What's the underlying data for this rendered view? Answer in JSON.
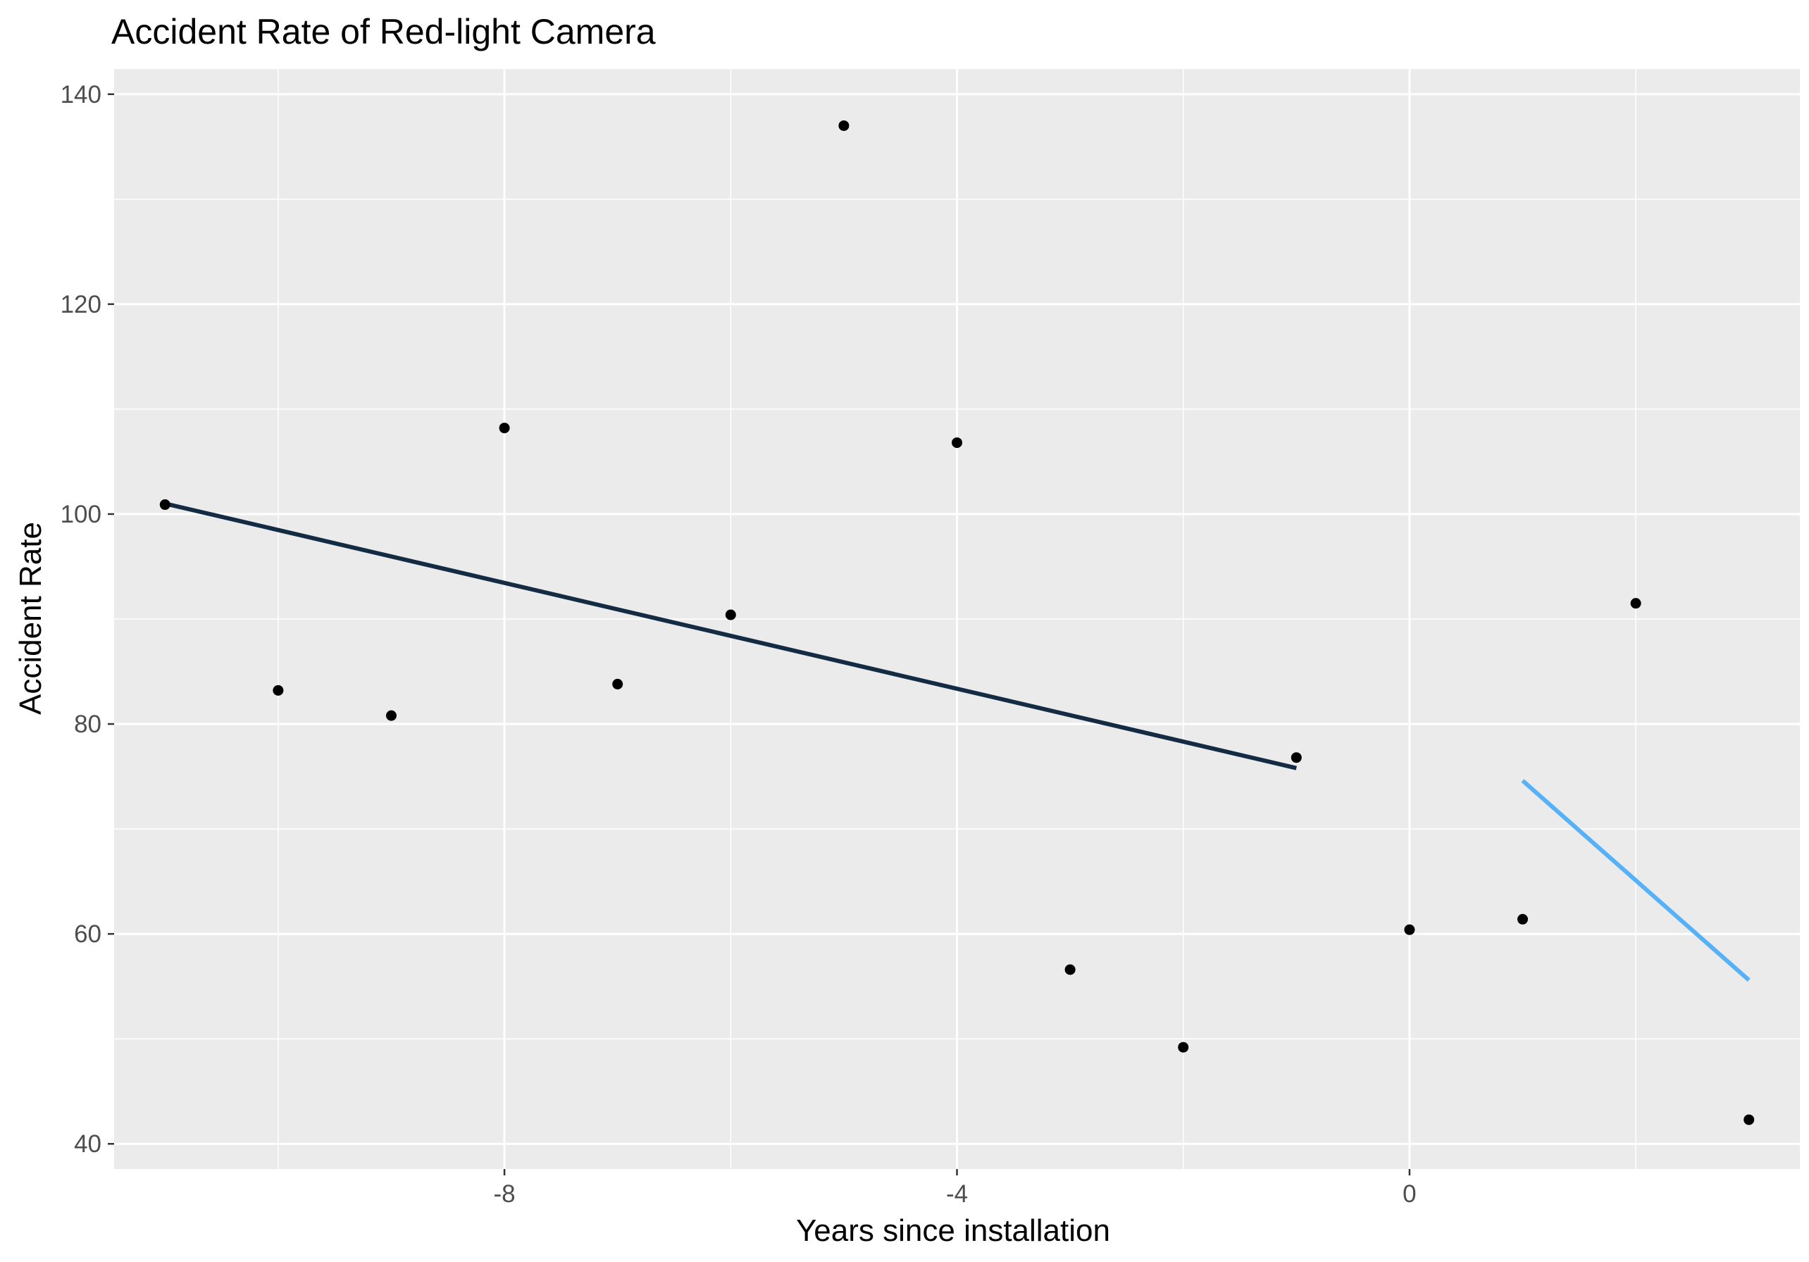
{
  "chart_data": {
    "type": "scatter",
    "title": "Accident Rate of Red-light Camera",
    "xlabel": "Years since installation",
    "ylabel": "Accident Rate",
    "xlim": [
      -11.45,
      3.45
    ],
    "ylim": [
      37.6,
      142.4
    ],
    "x_major_ticks": [
      -8,
      -4,
      0
    ],
    "x_minor_ticks": [
      -10,
      -6,
      -2,
      2
    ],
    "y_major_ticks": [
      40,
      60,
      80,
      100,
      120,
      140
    ],
    "y_minor_ticks": [
      50,
      70,
      90,
      110,
      130
    ],
    "grid": true,
    "legend": "none",
    "colors": {
      "panel": "#ebebeb",
      "grid": "#ffffff",
      "points": "#000000",
      "pre_trend": "#132b43",
      "post_trend": "#56b1f7"
    },
    "points": [
      {
        "x": -11,
        "y": 100.9
      },
      {
        "x": -10,
        "y": 83.2
      },
      {
        "x": -9,
        "y": 80.8
      },
      {
        "x": -8,
        "y": 108.2
      },
      {
        "x": -7,
        "y": 83.8
      },
      {
        "x": -6,
        "y": 90.4
      },
      {
        "x": -5,
        "y": 137.0
      },
      {
        "x": -4,
        "y": 106.8
      },
      {
        "x": -3,
        "y": 56.6
      },
      {
        "x": -2,
        "y": 49.2
      },
      {
        "x": -1,
        "y": 76.8
      },
      {
        "x": 0,
        "y": 60.4
      },
      {
        "x": 1,
        "y": 61.4
      },
      {
        "x": 2,
        "y": 91.5
      },
      {
        "x": 3,
        "y": 42.3
      }
    ],
    "series": [
      {
        "x": [
          -11,
          -1
        ],
        "y": [
          101.0,
          75.8
        ]
      },
      {
        "x": [
          1,
          3
        ],
        "y": [
          74.6,
          55.6
        ]
      }
    ]
  }
}
